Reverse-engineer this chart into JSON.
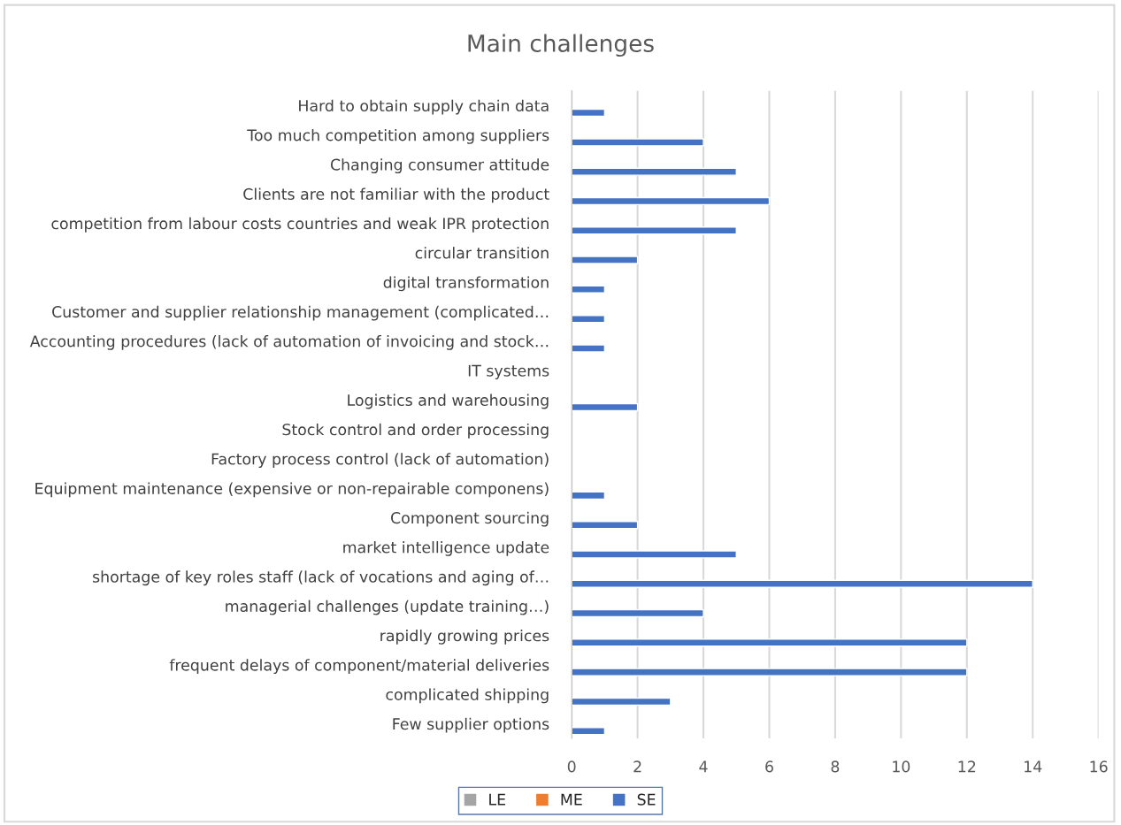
{
  "chart_data": {
    "type": "bar",
    "orientation": "horizontal",
    "title": "Main challenges",
    "categories": [
      "Hard to obtain supply chain data",
      "Too much competition among suppliers",
      "Changing consumer attitude",
      "Clients are not familiar with the product",
      "competition from labour costs countries and weak IPR protection",
      "circular transition",
      "digital transformation",
      "Customer and supplier relationship management (complicated…",
      "Accounting procedures (lack of automation of invoicing and stock…",
      "IT systems",
      "Logistics and warehousing",
      "Stock control and order processing",
      "Factory process control (lack of automation)",
      "Equipment maintenance (expensive or non-repairable componens)",
      "Component sourcing",
      "market intelligence update",
      "shortage of key roles staff (lack of vocations and aging of…",
      "managerial challenges (update training…)",
      "rapidly growing prices",
      "frequent delays of component/material deliveries",
      "complicated shipping",
      "Few supplier options"
    ],
    "series": [
      {
        "name": "LE",
        "color": "#a5a5a5",
        "values": [
          null,
          null,
          null,
          null,
          null,
          null,
          null,
          null,
          null,
          null,
          null,
          null,
          null,
          null,
          null,
          null,
          null,
          null,
          null,
          null,
          null,
          null
        ]
      },
      {
        "name": "ME",
        "color": "#ed7d31",
        "values": [
          null,
          null,
          null,
          null,
          null,
          null,
          null,
          null,
          null,
          null,
          null,
          null,
          null,
          null,
          null,
          null,
          null,
          null,
          null,
          null,
          null,
          null
        ]
      },
      {
        "name": "SE",
        "color": "#4472c4",
        "values": [
          1,
          4,
          5,
          6,
          5,
          2,
          1,
          1,
          1,
          null,
          2,
          null,
          null,
          1,
          2,
          5,
          14,
          4,
          12,
          12,
          3,
          1
        ]
      }
    ],
    "xlim": [
      0,
      16
    ],
    "xticks": [
      0,
      2,
      4,
      6,
      8,
      10,
      12,
      14,
      16
    ],
    "grid": "x",
    "legend": "bottom"
  }
}
